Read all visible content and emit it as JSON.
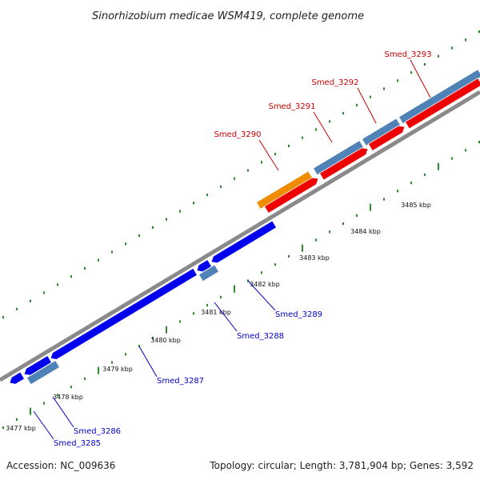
{
  "title": "Sinorhizobium medicae WSM419, complete genome",
  "accession": "Accession: NC_009636",
  "topology": "Topology: circular; Length: 3,781,904 bp; Genes: 3,592",
  "colors": {
    "backbone": "#8a8a8a",
    "tick": "#2e8b2e",
    "cds_forward": "#4f83b8",
    "cds_forward_light": "#8fb5d8",
    "cds_reverse_red": "#ee0000",
    "cds_reverse_blue": "#0000ee",
    "cds_highlight": "#f08c00",
    "label_red": "#cc0000",
    "label_blue": "#0000cc"
  },
  "kbp_labels": [
    "3477 kbp",
    "3478 kbp",
    "3479 kbp",
    "3480 kbp",
    "3481 kbp",
    "3482 kbp",
    "3483 kbp",
    "3484 kbp",
    "3485 kbp"
  ],
  "genes": [
    {
      "name": "Smed_3285",
      "label_color": "blue"
    },
    {
      "name": "Smed_3286",
      "label_color": "blue"
    },
    {
      "name": "Smed_3287",
      "label_color": "blue"
    },
    {
      "name": "Smed_3288",
      "label_color": "blue"
    },
    {
      "name": "Smed_3289",
      "label_color": "blue"
    },
    {
      "name": "Smed_3290",
      "label_color": "red"
    },
    {
      "name": "Smed_3291",
      "label_color": "red"
    },
    {
      "name": "Smed_3292",
      "label_color": "red"
    },
    {
      "name": "Smed_3293",
      "label_color": "red"
    }
  ]
}
